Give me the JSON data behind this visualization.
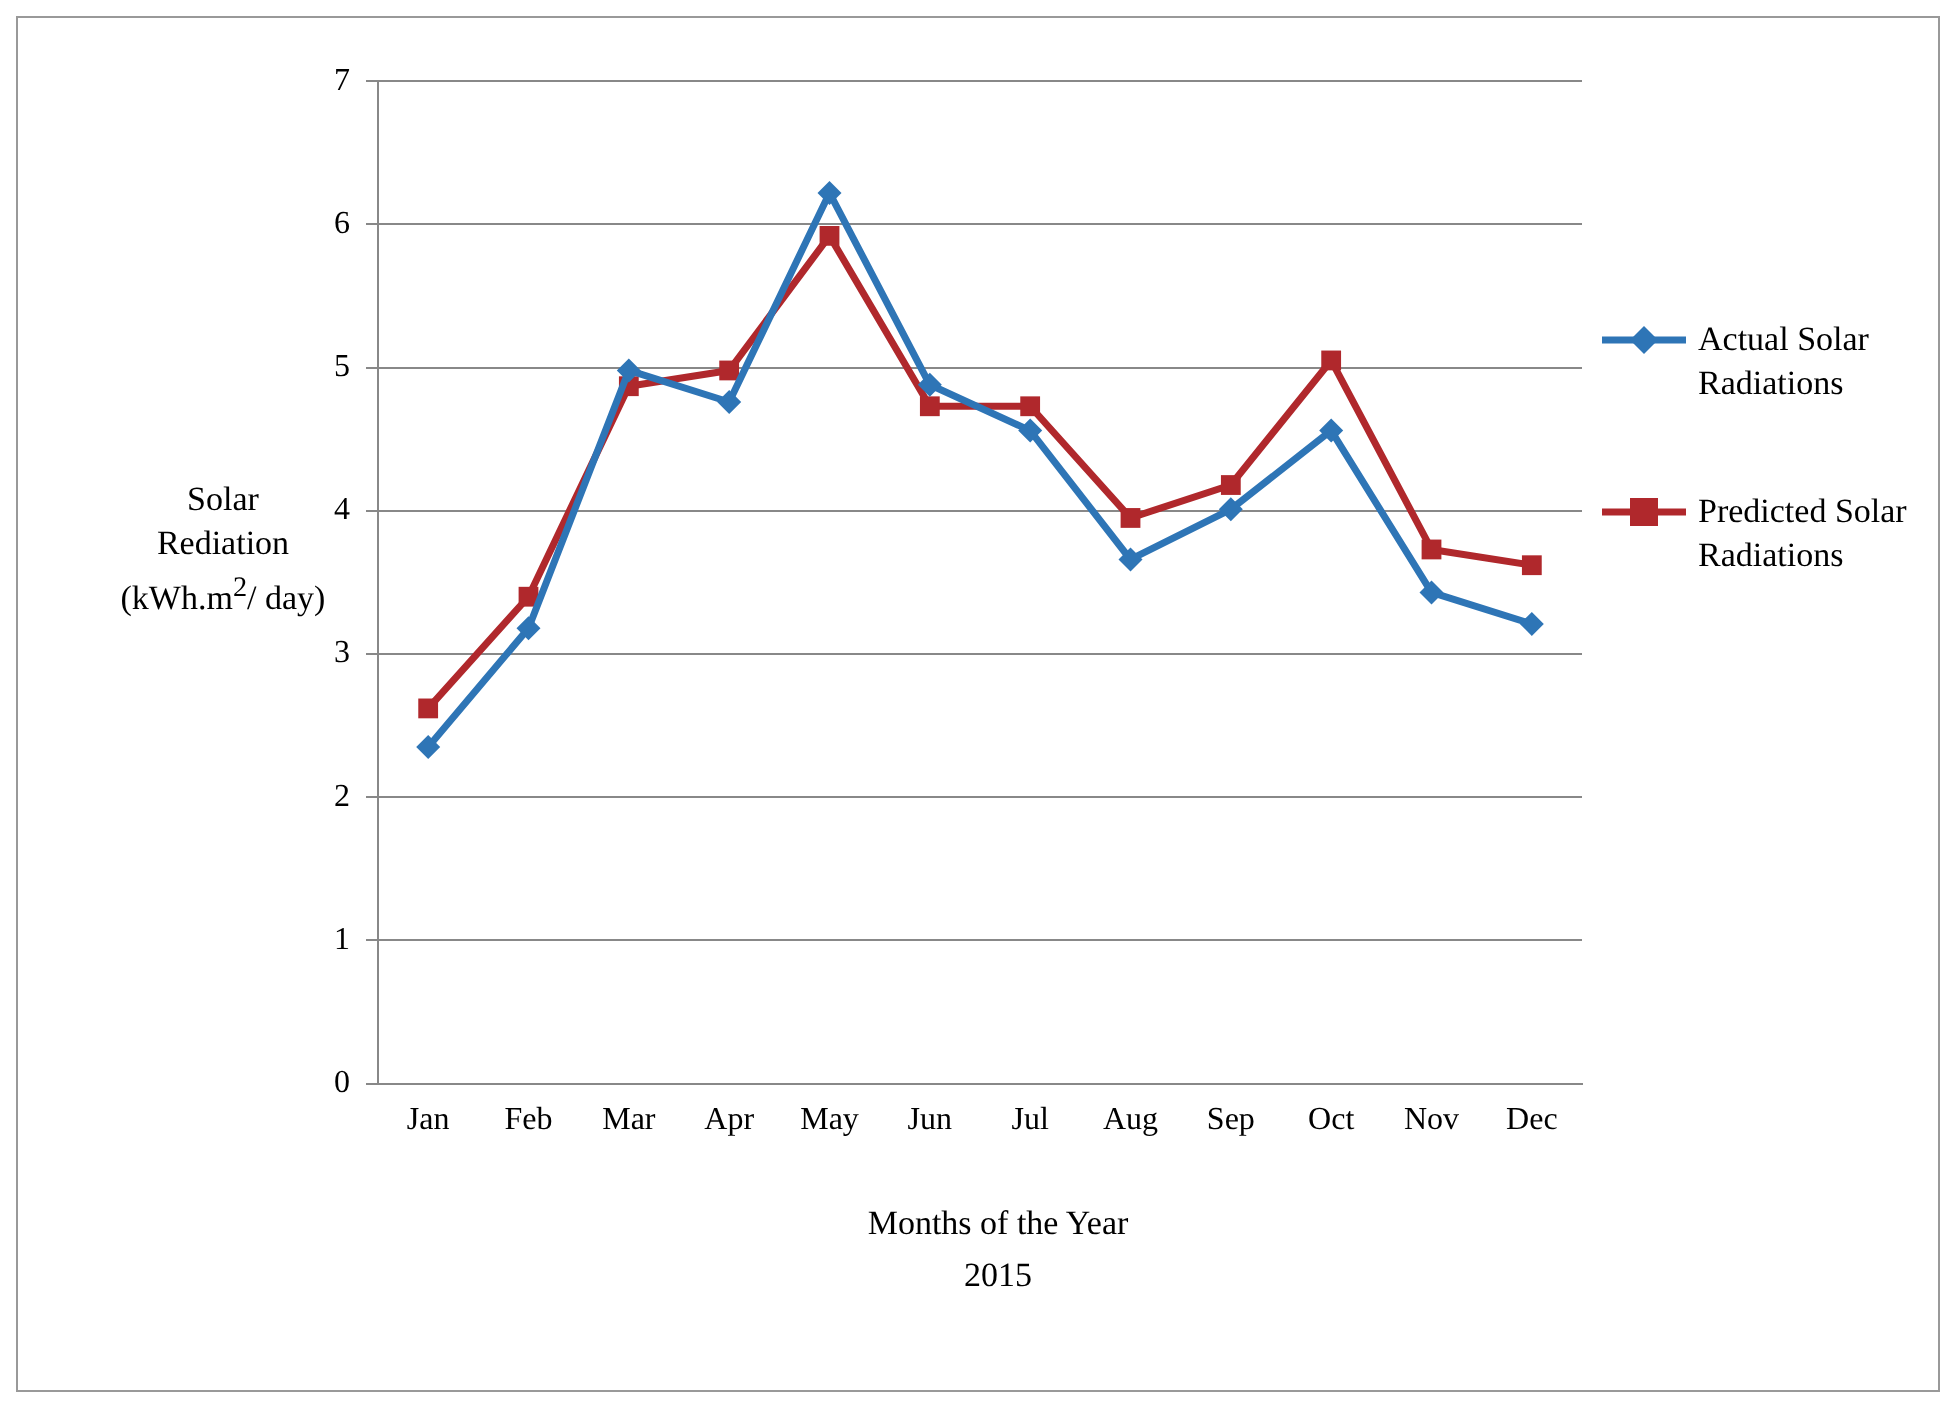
{
  "chart_data": {
    "type": "line",
    "xlabel": "Months of the Year\n2015",
    "ylabel": "Solar Rediation (kWh.m$^{2}$/ day)",
    "categories": [
      "Jan",
      "Feb",
      "Mar",
      "Apr",
      "May",
      "Jun",
      "Jul",
      "Aug",
      "Sep",
      "Oct",
      "Nov",
      "Dec"
    ],
    "series": [
      {
        "name": "Actual Solar Radiations",
        "color": "#2e75b6",
        "marker": "diamond",
        "values": [
          2.35,
          3.18,
          4.98,
          4.76,
          6.22,
          4.88,
          4.56,
          3.66,
          4.01,
          4.56,
          3.43,
          3.21
        ]
      },
      {
        "name": "Predicted Solar Radiations",
        "color": "#b0282c",
        "marker": "square",
        "values": [
          2.62,
          3.4,
          4.87,
          4.98,
          5.92,
          4.73,
          4.73,
          3.95,
          4.18,
          5.05,
          3.73,
          3.62
        ]
      }
    ],
    "ylim": [
      0,
      7
    ],
    "yticks": [
      0,
      1,
      2,
      3,
      4,
      5,
      6,
      7
    ],
    "grid": "y",
    "legend": "right",
    "line_style": "solid"
  }
}
